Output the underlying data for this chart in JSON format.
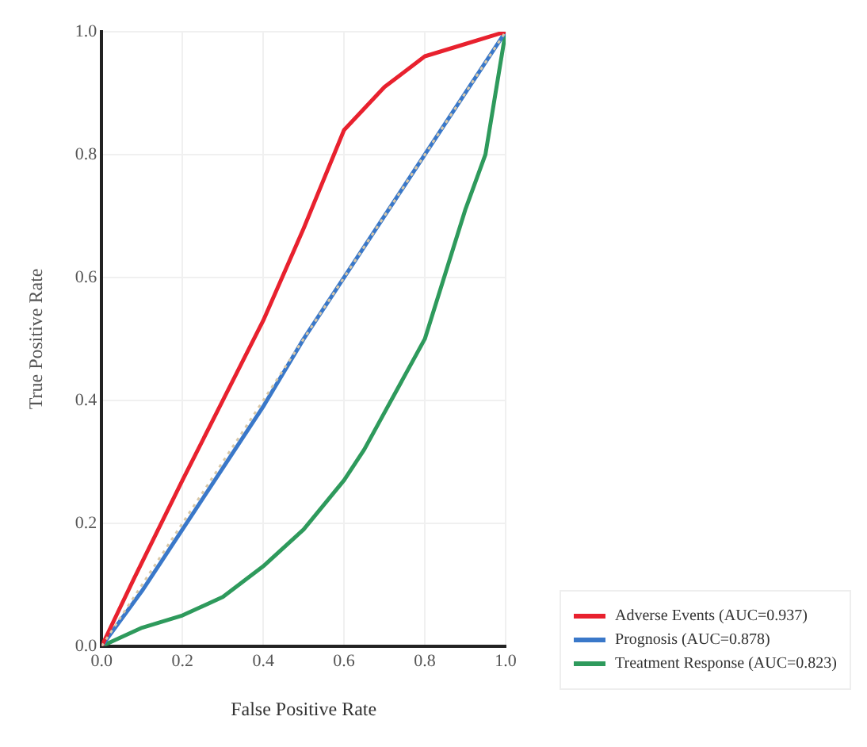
{
  "chart_data": {
    "type": "line",
    "xlabel": "False Positive Rate",
    "ylabel": "True Positive Rate",
    "xlim": [
      0,
      1
    ],
    "ylim": [
      0,
      1
    ],
    "xticks": [
      {
        "value": 0,
        "label": "0.0"
      },
      {
        "value": 0.2,
        "label": "0.2"
      },
      {
        "value": 0.4,
        "label": "0.4"
      },
      {
        "value": 0.6,
        "label": "0.6"
      },
      {
        "value": 0.8,
        "label": "0.8"
      },
      {
        "value": 1,
        "label": "1.0"
      }
    ],
    "yticks": [
      {
        "value": 0,
        "label": "0.0"
      },
      {
        "value": 0.2,
        "label": "0.2"
      },
      {
        "value": 0.4,
        "label": "0.4"
      },
      {
        "value": 0.6,
        "label": "0.6"
      },
      {
        "value": 0.8,
        "label": "0.8"
      },
      {
        "value": 1,
        "label": "1.0"
      }
    ],
    "grid": true,
    "legend": "bottom right",
    "marker": "none",
    "series": [
      {
        "name": "Adverse Events (AUC=0.937)",
        "color": "#e8212e",
        "x": [
          0,
          0.08,
          0.2,
          0.3,
          0.4,
          0.5,
          0.6,
          0.7,
          0.8,
          0.9,
          1
        ],
        "values": [
          0,
          0.11,
          0.27,
          0.4,
          0.53,
          0.68,
          0.84,
          0.91,
          0.96,
          0.98,
          1
        ]
      },
      {
        "name": "Prognosis (AUC=0.878)",
        "color": "#3a78c9",
        "x": [
          0,
          0.1,
          0.2,
          0.3,
          0.4,
          0.5,
          0.6,
          0.7,
          0.8,
          0.9,
          1
        ],
        "values": [
          0,
          0.09,
          0.19,
          0.29,
          0.39,
          0.5,
          0.6,
          0.7,
          0.8,
          0.9,
          1
        ]
      },
      {
        "name": "Treatment Response (AUC=0.823)",
        "color": "#2e9a5c",
        "x": [
          0,
          0.1,
          0.2,
          0.3,
          0.4,
          0.5,
          0.6,
          0.65,
          0.7,
          0.8,
          0.9,
          0.95,
          1
        ],
        "values": [
          0,
          0.03,
          0.05,
          0.08,
          0.13,
          0.19,
          0.27,
          0.32,
          0.38,
          0.5,
          0.71,
          0.8,
          1
        ]
      },
      {
        "type": "line",
        "color": "#d8c8a8",
        "line_style": "dotted",
        "x": [
          0,
          1
        ],
        "values": [
          0,
          1
        ]
      }
    ]
  }
}
